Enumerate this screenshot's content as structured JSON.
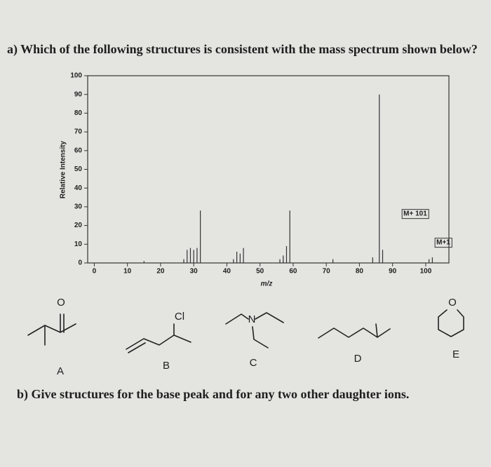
{
  "question_a": "a) Which of the following structures is consistent with the mass spectrum shown below?",
  "chart_data": {
    "type": "stem",
    "xlabel": "m/z",
    "ylabel": "Relative Intensity",
    "color": "#333333",
    "x": [
      15,
      27,
      28,
      29,
      30,
      31,
      32,
      42,
      43,
      44,
      45,
      56,
      57,
      58,
      59,
      72,
      84,
      86,
      87,
      101,
      102
    ],
    "values": [
      1,
      2,
      7,
      8,
      7,
      8,
      28,
      2,
      6,
      5,
      8,
      2,
      4,
      9,
      28,
      2,
      3,
      90,
      7,
      2,
      3
    ],
    "xlim": [
      -2,
      107
    ],
    "ylim": [
      0,
      100
    ],
    "xticks": [
      0,
      10,
      20,
      30,
      40,
      50,
      60,
      70,
      80,
      90,
      100
    ],
    "yticks": [
      0,
      10,
      20,
      30,
      40,
      50,
      60,
      70,
      80,
      90,
      100
    ],
    "annotations": [
      "M+ 101",
      "M+1"
    ]
  },
  "structures": {
    "atoms": [
      "O",
      "Cl",
      "N",
      "O"
    ],
    "labels": [
      "A",
      "B",
      "C",
      "D",
      "E"
    ]
  },
  "question_b": "b) Give structures for the base peak and for any two other daughter ions."
}
